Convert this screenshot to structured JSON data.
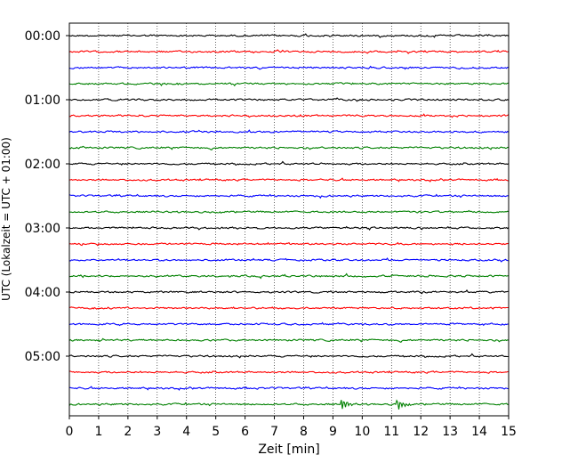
{
  "chart_data": {
    "type": "line",
    "title": "",
    "xlabel": "Zeit  [min]",
    "ylabel": "UTC (Lokalzeit = UTC + 01:00)",
    "xlim": [
      0,
      15
    ],
    "x_ticks": [
      "0",
      "1",
      "2",
      "3",
      "4",
      "5",
      "6",
      "7",
      "8",
      "9",
      "10",
      "11",
      "12",
      "13",
      "14",
      "15"
    ],
    "y_tick_labels": [
      "00:00",
      "01:00",
      "02:00",
      "03:00",
      "04:00",
      "05:00"
    ],
    "grid": "vertical dotted lines at each minute",
    "trace_interval_min": 15,
    "trace_color_cycle": [
      "#000000",
      "#ff0000",
      "#0000ff",
      "#008000"
    ],
    "traces": [
      {
        "start": "00:00",
        "color": "#000000"
      },
      {
        "start": "00:15",
        "color": "#ff0000"
      },
      {
        "start": "00:30",
        "color": "#0000ff"
      },
      {
        "start": "00:45",
        "color": "#008000"
      },
      {
        "start": "01:00",
        "color": "#000000"
      },
      {
        "start": "01:15",
        "color": "#ff0000"
      },
      {
        "start": "01:30",
        "color": "#0000ff"
      },
      {
        "start": "01:45",
        "color": "#008000"
      },
      {
        "start": "02:00",
        "color": "#000000"
      },
      {
        "start": "02:15",
        "color": "#ff0000"
      },
      {
        "start": "02:30",
        "color": "#0000ff"
      },
      {
        "start": "02:45",
        "color": "#008000"
      },
      {
        "start": "03:00",
        "color": "#000000"
      },
      {
        "start": "03:15",
        "color": "#ff0000"
      },
      {
        "start": "03:30",
        "color": "#0000ff"
      },
      {
        "start": "03:45",
        "color": "#008000"
      },
      {
        "start": "04:00",
        "color": "#000000"
      },
      {
        "start": "04:15",
        "color": "#ff0000"
      },
      {
        "start": "04:30",
        "color": "#0000ff"
      },
      {
        "start": "04:45",
        "color": "#008000"
      },
      {
        "start": "05:00",
        "color": "#000000"
      },
      {
        "start": "05:15",
        "color": "#ff0000"
      },
      {
        "start": "05:30",
        "color": "#0000ff"
      },
      {
        "start": "05:45",
        "color": "#008000",
        "events_min": [
          9.3,
          11.2
        ]
      }
    ]
  }
}
